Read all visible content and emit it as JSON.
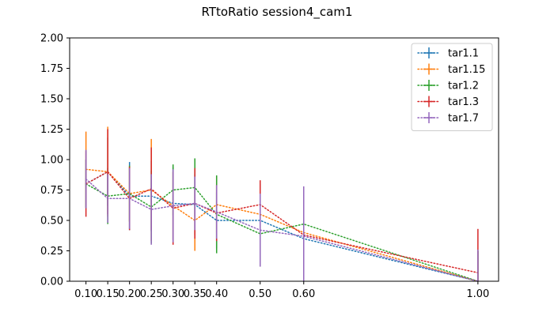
{
  "chart_data": {
    "type": "line",
    "title": "RTtoRatio session4_cam1",
    "xlabel": "",
    "ylabel": "",
    "x": [
      0.1,
      0.15,
      0.2,
      0.25,
      0.3,
      0.35,
      0.4,
      0.5,
      0.6,
      1.0
    ],
    "x_tick_labels": [
      "0.10",
      "0.15",
      "0.20",
      "0.25",
      "0.30",
      "0.35",
      "0.40",
      "0.50",
      "0.60",
      "1.00"
    ],
    "xlim": [
      0.0625,
      1.0475
    ],
    "ylim": [
      0,
      2
    ],
    "y_ticks": [
      0,
      0.25,
      0.5,
      0.75,
      1.0,
      1.25,
      1.5,
      1.75,
      2.0
    ],
    "y_tick_labels": [
      "0.00",
      "0.25",
      "0.50",
      "0.75",
      "1.00",
      "1.25",
      "1.50",
      "1.75",
      "2.00"
    ],
    "grid": false,
    "legend_position": "top-right",
    "line_style": "dotted",
    "series": [
      {
        "name": "tar1.1",
        "color": "#1f77b4",
        "y": [
          0.8,
          0.9,
          0.7,
          0.7,
          0.64,
          0.63,
          0.5,
          0.5,
          0.35,
          0.0
        ],
        "err": [
          0.2,
          0.28,
          0.28,
          0.29,
          0.3,
          0.25,
          0.23,
          0.3,
          0.3,
          0.25
        ]
      },
      {
        "name": "tar1.15",
        "color": "#ff7f0e",
        "y": [
          0.92,
          0.9,
          0.72,
          0.75,
          0.62,
          0.5,
          0.63,
          0.55,
          0.4,
          0.0
        ],
        "err": [
          0.31,
          0.37,
          0.23,
          0.42,
          0.28,
          0.25,
          0.23,
          0.15,
          0.3,
          0.25
        ]
      },
      {
        "name": "tar1.2",
        "color": "#2ca02c",
        "y": [
          0.8,
          0.7,
          0.72,
          0.61,
          0.75,
          0.77,
          0.55,
          0.39,
          0.47,
          0.0
        ],
        "err": [
          0.2,
          0.23,
          0.23,
          0.3,
          0.21,
          0.24,
          0.32,
          0.27,
          0.3,
          0.25
        ]
      },
      {
        "name": "tar1.3",
        "color": "#d62728",
        "y": [
          0.8,
          0.9,
          0.68,
          0.76,
          0.6,
          0.64,
          0.56,
          0.63,
          0.38,
          0.07
        ],
        "err": [
          0.27,
          0.35,
          0.26,
          0.34,
          0.3,
          0.29,
          0.23,
          0.2,
          0.25,
          0.36
        ]
      },
      {
        "name": "tar1.7",
        "color": "#9467bd",
        "y": [
          0.84,
          0.68,
          0.68,
          0.59,
          0.62,
          0.64,
          0.57,
          0.42,
          0.37,
          0.0
        ],
        "err": [
          0.24,
          0.2,
          0.25,
          0.29,
          0.3,
          0.22,
          0.22,
          0.3,
          0.41,
          0.26
        ]
      }
    ]
  }
}
